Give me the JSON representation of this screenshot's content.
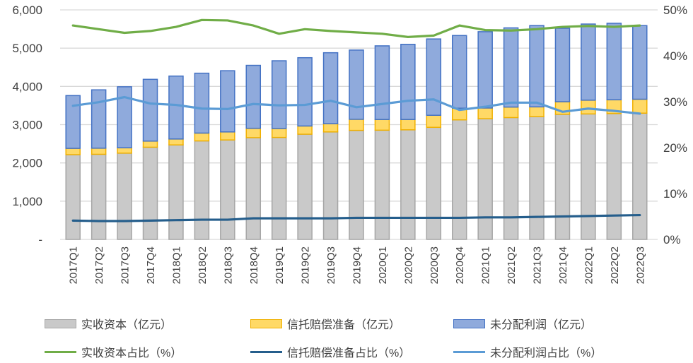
{
  "chart_data": {
    "type": "combo_stacked_bar_line",
    "title": "",
    "categories": [
      "2017Q1",
      "2017Q2",
      "2017Q3",
      "2017Q4",
      "2018Q1",
      "2018Q2",
      "2018Q3",
      "2018Q4",
      "2019Q1",
      "2019Q2",
      "2019Q3",
      "2019Q4",
      "2020Q1",
      "2020Q2",
      "2020Q3",
      "2020Q4",
      "2021Q1",
      "2021Q2",
      "2021Q3",
      "2021Q4",
      "2022Q1",
      "2022Q2",
      "2022Q3"
    ],
    "bar_series": [
      {
        "key": "paid-in-capital",
        "name": "实收资本（亿元）",
        "axis": "left",
        "fill": "#C9C9C9",
        "border": "#A6A6A6",
        "values": [
          2215,
          2225,
          2255,
          2410,
          2470,
          2575,
          2600,
          2660,
          2665,
          2750,
          2810,
          2850,
          2855,
          2865,
          2930,
          3125,
          3155,
          3185,
          3210,
          3270,
          3280,
          3290,
          3300
        ]
      },
      {
        "key": "trust-compensation-reserve",
        "name": "信托赔偿准备（亿元）",
        "axis": "left",
        "fill": "#FFD966",
        "border": "#F0B000",
        "values": [
          165,
          160,
          140,
          160,
          155,
          205,
          210,
          245,
          235,
          215,
          215,
          290,
          280,
          270,
          315,
          305,
          280,
          275,
          255,
          330,
          360,
          360,
          365
        ]
      },
      {
        "key": "undistributed-profit",
        "name": "未分配利润（亿元）",
        "axis": "left",
        "fill": "#8FAADC",
        "border": "#4472C4",
        "values": [
          1380,
          1525,
          1595,
          1615,
          1645,
          1565,
          1600,
          1645,
          1770,
          1785,
          1855,
          1810,
          1925,
          1965,
          1995,
          1900,
          1995,
          2070,
          2125,
          1920,
          1990,
          2000,
          1925
        ]
      }
    ],
    "line_series": [
      {
        "key": "paid-in-capital-ratio",
        "name": "实收资本占比（%）",
        "axis": "right",
        "color": "#70AD47",
        "values": [
          46.6,
          45.8,
          45.0,
          45.4,
          46.3,
          47.8,
          47.7,
          46.6,
          44.8,
          45.8,
          45.4,
          45.1,
          44.8,
          44.1,
          44.4,
          46.6,
          45.6,
          45.5,
          45.8,
          46.3,
          46.5,
          46.3,
          46.6
        ]
      },
      {
        "key": "reserve-ratio",
        "name": "信托赔偿准备占比（%）",
        "axis": "right",
        "color": "#255E8C",
        "values": [
          4.1,
          4.0,
          4.0,
          4.1,
          4.2,
          4.3,
          4.3,
          4.6,
          4.6,
          4.6,
          4.6,
          4.7,
          4.7,
          4.7,
          4.7,
          4.7,
          4.8,
          4.8,
          4.9,
          5.0,
          5.1,
          5.2,
          5.3
        ]
      },
      {
        "key": "undistributed-profit-ratio",
        "name": "未分配利润占比（%）",
        "axis": "right",
        "color": "#5B9BD5",
        "values": [
          29.1,
          29.9,
          31.0,
          29.6,
          29.3,
          28.5,
          28.4,
          29.5,
          29.2,
          29.3,
          30.2,
          28.8,
          29.5,
          30.2,
          30.5,
          28.2,
          28.9,
          29.8,
          29.8,
          27.8,
          28.5,
          28.0,
          27.4
        ]
      }
    ],
    "left_axis": {
      "min": 0,
      "max": 6000,
      "tick_interval": 1000,
      "tick_labels_top_down": [
        "6,000",
        "5,000",
        "4,000",
        "3,000",
        "2,000",
        "1,000",
        "-"
      ]
    },
    "right_axis": {
      "min": 0,
      "max": 50,
      "tick_interval": 10,
      "tick_labels_top_down": [
        "50%",
        "40%",
        "30%",
        "20%",
        "10%",
        "0%"
      ]
    },
    "grid": true,
    "gridline_color": "#D9D9D9",
    "text_color": "#404040",
    "legend_position": "bottom"
  }
}
